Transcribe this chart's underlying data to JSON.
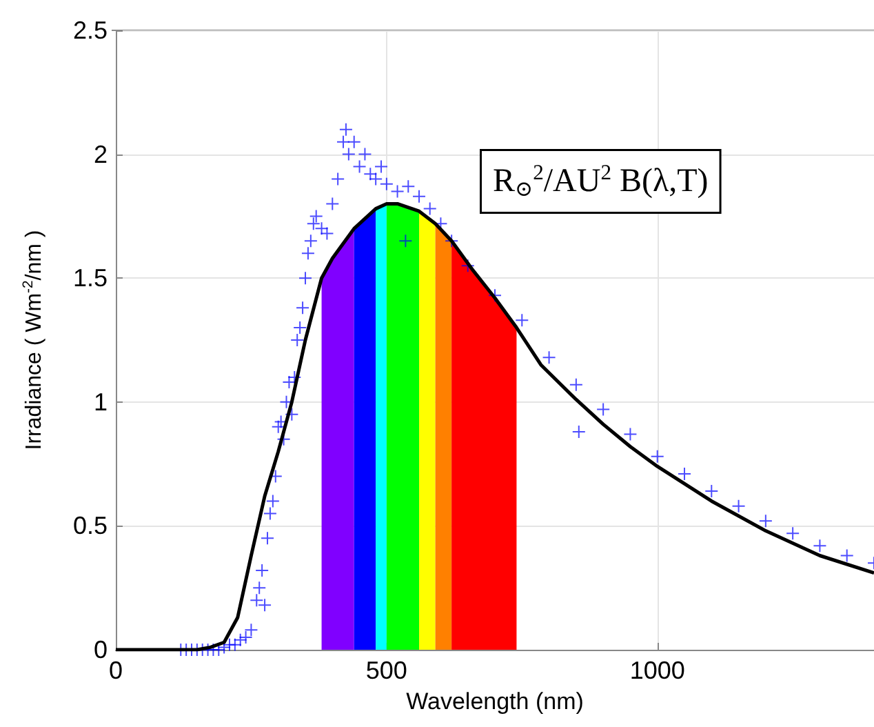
{
  "chart_data": {
    "type": "line",
    "xlabel": "Wavelength (nm)",
    "ylabel": "Irradiance ( Wm$^{-2}$/nm )",
    "annotations": [
      "R$_{⊙}$$^{2}$/AU$^{2}$ B(λ,T)"
    ],
    "xlim": [
      0,
      1400
    ],
    "xticks": [
      0,
      500,
      1000
    ],
    "ylim": [
      0,
      2.5
    ],
    "yticks": [
      0,
      0.5,
      1,
      1.5,
      2,
      2.5
    ],
    "grid": true,
    "series": [
      {
        "type": "area",
        "color": "#8000ff",
        "x": [
          380,
          400,
          440
        ],
        "values": [
          1.5,
          1.58,
          1.7
        ]
      },
      {
        "type": "area",
        "color": "#0000ff",
        "x": [
          440,
          480
        ],
        "values": [
          1.7,
          1.78
        ]
      },
      {
        "type": "area",
        "color": "#00ffff",
        "x": [
          480,
          500
        ],
        "values": [
          1.78,
          1.8
        ]
      },
      {
        "type": "area",
        "color": "#00ff00",
        "x": [
          500,
          520,
          560
        ],
        "values": [
          1.8,
          1.8,
          1.77
        ]
      },
      {
        "type": "area",
        "color": "#ffff00",
        "x": [
          560,
          590
        ],
        "values": [
          1.77,
          1.72
        ]
      },
      {
        "type": "area",
        "color": "#ff8000",
        "x": [
          590,
          620
        ],
        "values": [
          1.72,
          1.65
        ]
      },
      {
        "type": "area",
        "color": "#ff0000",
        "x": [
          620,
          660,
          700,
          740
        ],
        "values": [
          1.65,
          1.53,
          1.42,
          1.3
        ]
      },
      {
        "type": "scatter",
        "color": "#0000ff",
        "marker": "cross",
        "x": [
          120,
          130,
          140,
          150,
          160,
          170,
          180,
          190,
          200,
          210,
          220,
          230,
          240,
          250,
          260,
          265,
          270,
          275,
          280,
          285,
          290,
          295,
          300,
          305,
          310,
          315,
          320,
          325,
          330,
          335,
          340,
          345,
          350,
          355,
          360,
          365,
          370,
          380,
          390,
          400,
          410,
          420,
          425,
          430,
          440,
          450,
          460,
          470,
          480,
          490,
          500,
          520,
          535,
          540,
          560,
          580,
          600,
          620,
          650,
          700,
          750,
          800,
          855,
          850,
          900,
          950,
          1000,
          1050,
          1100,
          1150,
          1200,
          1250,
          1300,
          1350,
          1400
        ],
        "values": [
          0,
          0,
          0,
          0,
          0,
          0,
          0,
          0,
          0.01,
          0.02,
          0.02,
          0.04,
          0.05,
          0.08,
          0.2,
          0.25,
          0.32,
          0.18,
          0.45,
          0.55,
          0.6,
          0.7,
          0.9,
          0.92,
          0.85,
          1.0,
          1.08,
          0.95,
          1.1,
          1.25,
          1.3,
          1.38,
          1.5,
          1.6,
          1.65,
          1.72,
          1.75,
          1.7,
          1.68,
          1.8,
          1.9,
          2.05,
          2.1,
          2.0,
          2.05,
          1.95,
          2.0,
          1.92,
          1.9,
          1.95,
          1.88,
          1.85,
          1.65,
          1.87,
          1.83,
          1.78,
          1.72,
          1.65,
          1.55,
          1.43,
          1.33,
          1.18,
          0.88,
          1.07,
          0.97,
          0.87,
          0.78,
          0.71,
          0.64,
          0.58,
          0.52,
          0.47,
          0.42,
          0.38,
          0.35
        ]
      },
      {
        "color": "#000000",
        "marker": "none",
        "x": [
          0,
          150,
          175,
          200,
          225,
          250,
          275,
          300,
          325,
          350,
          380,
          400,
          440,
          480,
          500,
          520,
          560,
          590,
          620,
          660,
          700,
          740,
          785,
          850,
          900,
          950,
          1000,
          1100,
          1200,
          1300,
          1400
        ],
        "values": [
          0,
          0,
          0.01,
          0.03,
          0.13,
          0.38,
          0.62,
          0.8,
          1.0,
          1.25,
          1.5,
          1.58,
          1.7,
          1.78,
          1.8,
          1.8,
          1.77,
          1.72,
          1.65,
          1.53,
          1.42,
          1.3,
          1.15,
          1.01,
          0.91,
          0.82,
          0.74,
          0.6,
          0.48,
          0.38,
          0.31
        ]
      }
    ]
  }
}
